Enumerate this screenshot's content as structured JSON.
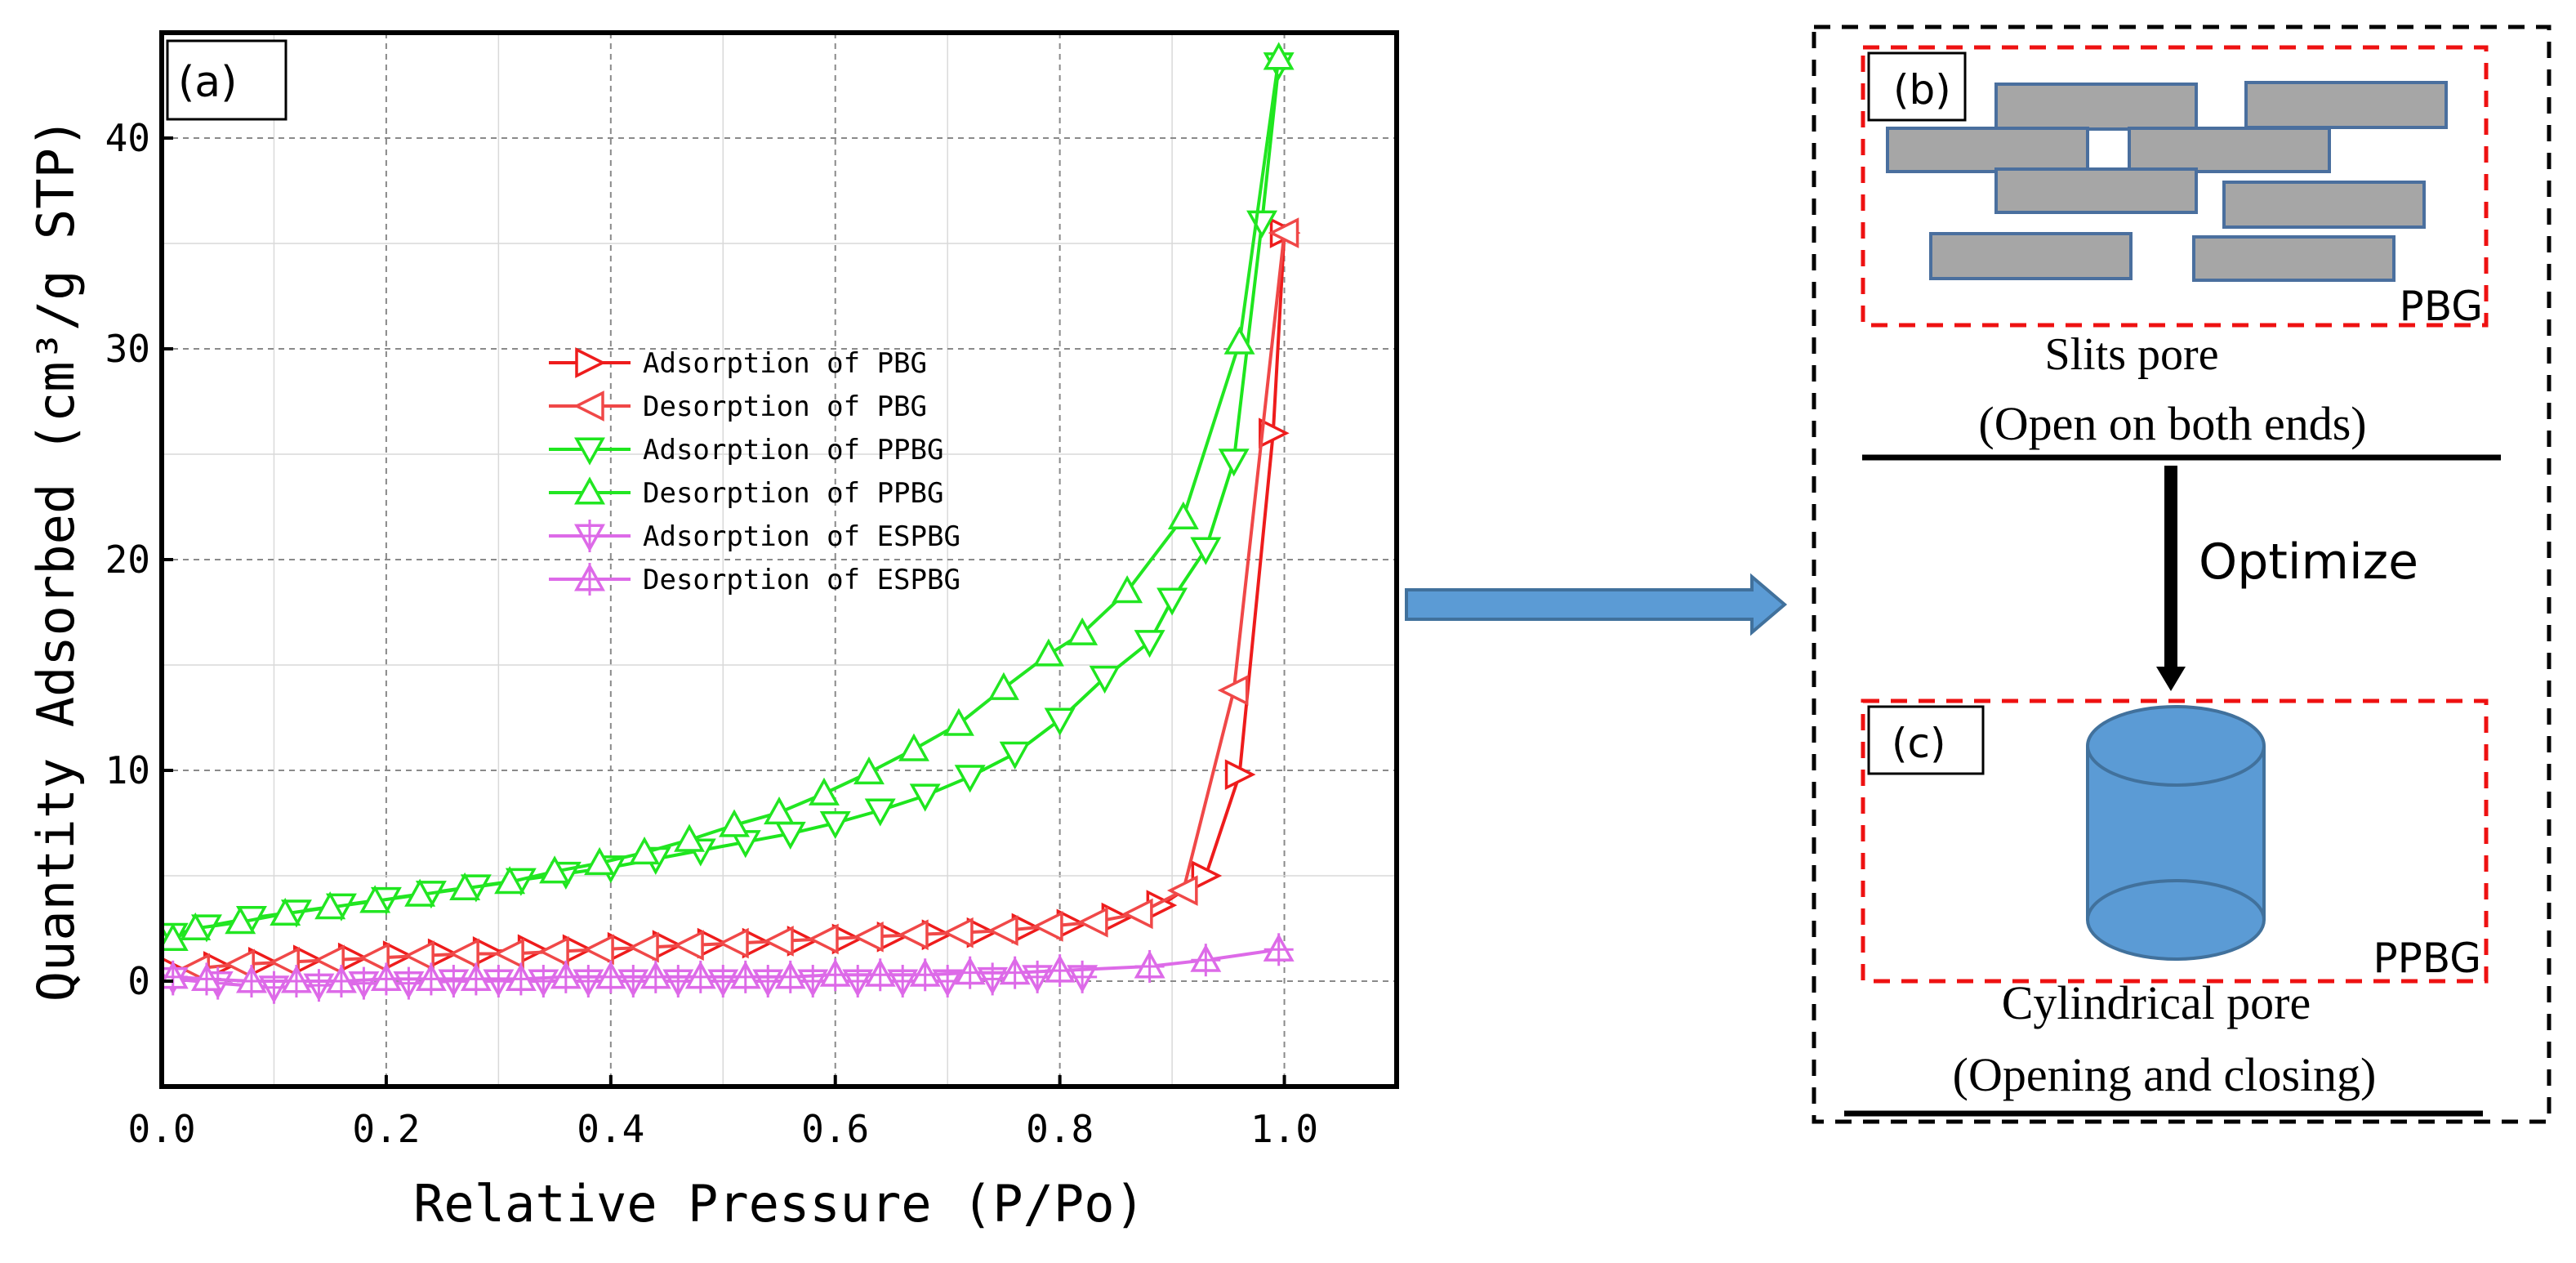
{
  "chart_data": {
    "type": "line",
    "panel_label": "(a)",
    "xlabel": "Relative Pressure (P/Po)",
    "ylabel": "Quantity Adsorbed (cm³/g STP)",
    "xlim": [
      0.0,
      1.1
    ],
    "ylim": [
      -5,
      45
    ],
    "xticks": [
      0.0,
      0.2,
      0.4,
      0.6,
      0.8,
      1.0
    ],
    "xtick_labels": [
      "0.0",
      "0.2",
      "0.4",
      "0.6",
      "0.8",
      "1.0"
    ],
    "yticks": [
      0,
      10,
      20,
      30,
      40
    ],
    "ytick_labels": [
      "0",
      "10",
      "20",
      "30",
      "40"
    ],
    "grid": true,
    "legend_position": "center",
    "series": [
      {
        "name": "Adsorption of PBG",
        "color": "#ee1c1c",
        "marker": "triangle-right",
        "x": [
          0.01,
          0.05,
          0.09,
          0.13,
          0.17,
          0.21,
          0.25,
          0.29,
          0.33,
          0.37,
          0.41,
          0.45,
          0.49,
          0.53,
          0.57,
          0.61,
          0.65,
          0.69,
          0.73,
          0.77,
          0.81,
          0.85,
          0.89,
          0.93,
          0.96,
          0.99,
          1.0
        ],
        "y": [
          0.5,
          0.7,
          0.9,
          1.0,
          1.1,
          1.2,
          1.3,
          1.4,
          1.5,
          1.5,
          1.6,
          1.7,
          1.8,
          1.8,
          1.9,
          2.0,
          2.1,
          2.2,
          2.3,
          2.5,
          2.7,
          3.0,
          3.6,
          5.0,
          9.8,
          26.0,
          35.5
        ]
      },
      {
        "name": "Desorption of PBG",
        "color": "#f04848",
        "marker": "triangle-left",
        "x": [
          1.0,
          0.955,
          0.91,
          0.87,
          0.83,
          0.79,
          0.75,
          0.71,
          0.67,
          0.63,
          0.59,
          0.55,
          0.51,
          0.47,
          0.43,
          0.39,
          0.35,
          0.31,
          0.27,
          0.23,
          0.19,
          0.15,
          0.11,
          0.07,
          0.03
        ],
        "y": [
          35.5,
          13.8,
          4.3,
          3.2,
          2.8,
          2.6,
          2.4,
          2.3,
          2.2,
          2.1,
          2.0,
          1.9,
          1.8,
          1.7,
          1.6,
          1.5,
          1.4,
          1.3,
          1.3,
          1.2,
          1.1,
          1.0,
          0.9,
          0.8,
          0.6
        ]
      },
      {
        "name": "Adsorption of PPBG",
        "color": "#1ee61e",
        "marker": "triangle-down",
        "x": [
          0.01,
          0.04,
          0.08,
          0.12,
          0.16,
          0.2,
          0.24,
          0.28,
          0.32,
          0.36,
          0.4,
          0.44,
          0.48,
          0.52,
          0.56,
          0.6,
          0.64,
          0.68,
          0.72,
          0.76,
          0.8,
          0.84,
          0.88,
          0.9,
          0.93,
          0.955,
          0.98,
          0.995
        ],
        "y": [
          2.2,
          2.6,
          3.0,
          3.3,
          3.6,
          3.9,
          4.2,
          4.5,
          4.8,
          5.1,
          5.4,
          5.8,
          6.2,
          6.6,
          7.0,
          7.5,
          8.1,
          8.8,
          9.7,
          10.8,
          12.4,
          14.4,
          16.1,
          18.1,
          20.5,
          24.7,
          36.0,
          43.5
        ]
      },
      {
        "name": "Desorption of PPBG",
        "color": "#22e622",
        "marker": "triangle-up",
        "x": [
          0.995,
          0.96,
          0.91,
          0.86,
          0.82,
          0.79,
          0.75,
          0.71,
          0.67,
          0.63,
          0.59,
          0.55,
          0.51,
          0.47,
          0.43,
          0.39,
          0.35,
          0.31,
          0.27,
          0.23,
          0.19,
          0.15,
          0.11,
          0.07,
          0.03,
          0.01
        ],
        "y": [
          43.8,
          30.3,
          22.0,
          18.5,
          16.5,
          15.5,
          13.9,
          12.2,
          11.0,
          9.9,
          8.9,
          8.0,
          7.4,
          6.7,
          6.1,
          5.6,
          5.2,
          4.7,
          4.4,
          4.1,
          3.8,
          3.5,
          3.2,
          2.8,
          2.5,
          2.0
        ]
      },
      {
        "name": "Adsorption of ESPBG",
        "color": "#dd6ae8",
        "marker": "triangle-down-cross",
        "x": [
          0.01,
          0.05,
          0.1,
          0.14,
          0.18,
          0.22,
          0.26,
          0.3,
          0.34,
          0.38,
          0.42,
          0.46,
          0.5,
          0.54,
          0.58,
          0.62,
          0.66,
          0.7,
          0.74,
          0.78,
          0.82
        ],
        "y": [
          0.1,
          -0.1,
          -0.3,
          -0.2,
          -0.1,
          -0.1,
          0.0,
          0.0,
          0.0,
          0.0,
          0.0,
          0.0,
          0.0,
          0.0,
          0.0,
          0.0,
          0.0,
          0.0,
          0.1,
          0.2,
          0.2
        ]
      },
      {
        "name": "Desorption of ESPBG",
        "color": "#dd6ae8",
        "marker": "triangle-up-cross",
        "x": [
          0.995,
          0.93,
          0.88,
          0.8,
          0.76,
          0.72,
          0.68,
          0.64,
          0.6,
          0.56,
          0.52,
          0.48,
          0.44,
          0.4,
          0.36,
          0.32,
          0.28,
          0.24,
          0.2,
          0.16,
          0.12,
          0.08,
          0.04,
          0.01
        ],
        "y": [
          1.5,
          1.0,
          0.7,
          0.5,
          0.4,
          0.4,
          0.3,
          0.3,
          0.3,
          0.2,
          0.2,
          0.2,
          0.2,
          0.2,
          0.2,
          0.1,
          0.1,
          0.1,
          0.1,
          0.0,
          0.0,
          0.0,
          0.1,
          0.2
        ]
      }
    ]
  },
  "diagram": {
    "panel_b_label": "(b)",
    "panel_b_tag": "PBG",
    "panel_b_title": "Slits pore",
    "panel_b_subtitle": "(Open on both ends)",
    "arrow_label": "Optimize",
    "panel_c_label": "(c)",
    "panel_c_tag": "PPBG",
    "panel_c_title": "Cylindrical pore",
    "panel_c_subtitle": "(Opening and closing)",
    "colors": {
      "slit_fill": "#a6a6a6",
      "slit_stroke": "#4a6f9e",
      "cylinder_fill": "#5b9bd5",
      "cylinder_stroke": "#41719c",
      "dashed_red": "#ee1111",
      "big_arrow_fill": "#5b9bd5",
      "big_arrow_stroke": "#41719c"
    }
  }
}
